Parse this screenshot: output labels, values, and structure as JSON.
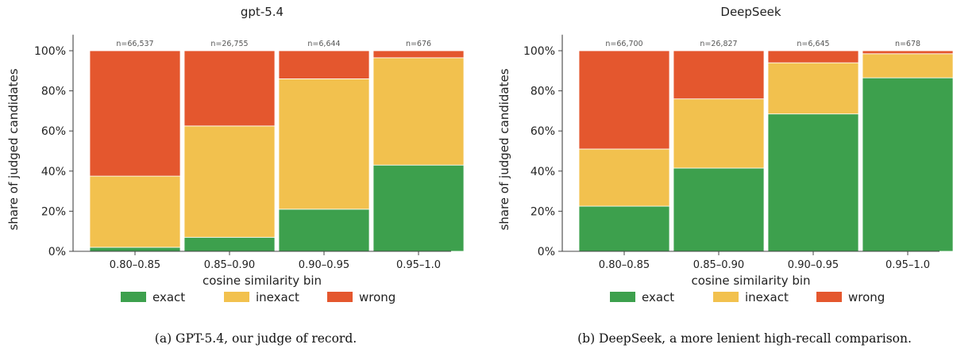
{
  "legend": {
    "items": [
      {
        "label": "exact",
        "color": "#3da04d"
      },
      {
        "label": "inexact",
        "color": "#f2c14e"
      },
      {
        "label": "wrong",
        "color": "#e4572e"
      }
    ]
  },
  "chart_data": [
    {
      "type": "bar",
      "stacked": true,
      "title": "gpt-5.4",
      "caption": "(a) GPT-5.4, our judge of record.",
      "xlabel": "cosine similarity bin",
      "ylabel": "share of judged candidates",
      "ylim": [
        0,
        108
      ],
      "yticks": [
        "0%",
        "20%",
        "40%",
        "60%",
        "80%",
        "100%"
      ],
      "categories": [
        "0.80–0.85",
        "0.85–0.90",
        "0.90–0.95",
        "0.95–1.0"
      ],
      "annotations": [
        "n=66,537",
        "n=26,755",
        "n=6,644",
        "n=676"
      ],
      "series": [
        {
          "name": "exact",
          "color": "#3da04d",
          "values": [
            2,
            7,
            21,
            43
          ]
        },
        {
          "name": "inexact",
          "color": "#f2c14e",
          "values": [
            35.5,
            55.5,
            65,
            53.5
          ]
        },
        {
          "name": "wrong",
          "color": "#e4572e",
          "values": [
            62.5,
            37.5,
            14,
            3.5
          ]
        }
      ],
      "grid": false,
      "legend_position": "bottom-center"
    },
    {
      "type": "bar",
      "stacked": true,
      "title": "DeepSeek",
      "caption": "(b) DeepSeek, a more lenient high-recall comparison.",
      "xlabel": "cosine similarity bin",
      "ylabel": "share of judged candidates",
      "ylim": [
        0,
        108
      ],
      "yticks": [
        "0%",
        "20%",
        "40%",
        "60%",
        "80%",
        "100%"
      ],
      "categories": [
        "0.80–0.85",
        "0.85–0.90",
        "0.90–0.95",
        "0.95–1.0"
      ],
      "annotations": [
        "n=66,700",
        "n=26,827",
        "n=6,645",
        "n=678"
      ],
      "series": [
        {
          "name": "exact",
          "color": "#3da04d",
          "values": [
            22.5,
            41.5,
            68.5,
            86.5
          ]
        },
        {
          "name": "inexact",
          "color": "#f2c14e",
          "values": [
            28.5,
            34.5,
            25.5,
            12
          ]
        },
        {
          "name": "wrong",
          "color": "#e4572e",
          "values": [
            49,
            24,
            6,
            1.5
          ]
        }
      ],
      "grid": false,
      "legend_position": "bottom-center"
    }
  ]
}
